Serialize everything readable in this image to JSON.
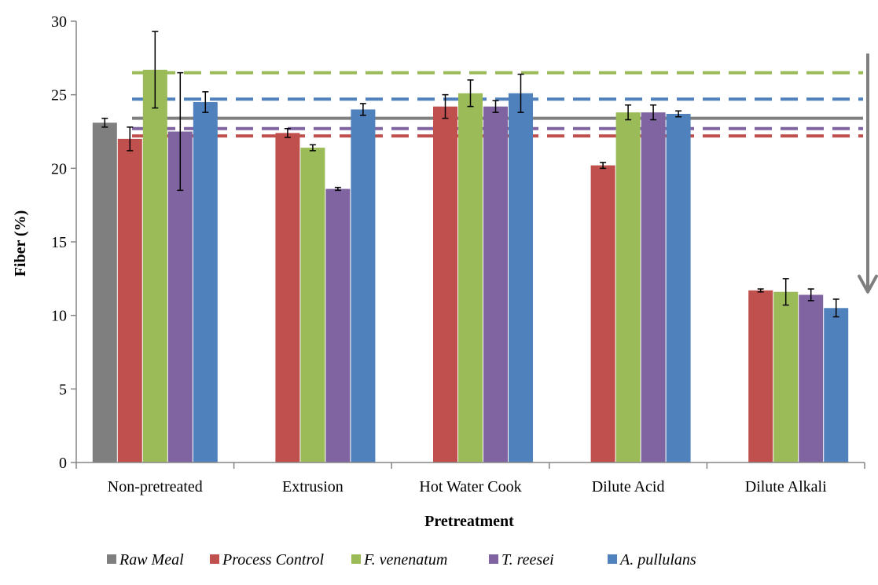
{
  "chart_data": {
    "type": "bar",
    "xlabel": "Pretreatment",
    "ylabel": "Fiber (%)",
    "ylim": [
      0,
      30
    ],
    "yticks": [
      0,
      5,
      10,
      15,
      20,
      25,
      30
    ],
    "grid": false,
    "legend_position": "bottom",
    "categories": [
      "Non-pretreated",
      "Extrusion",
      "Hot Water Cook",
      "Dilute Acid",
      "Dilute Alkali"
    ],
    "series": [
      {
        "name": "Raw Meal",
        "color": "#7f7f7f",
        "values": [
          23.1,
          null,
          null,
          null,
          null
        ],
        "errors": [
          0.3,
          null,
          null,
          null,
          null
        ]
      },
      {
        "name": "Process Control",
        "color": "#c0504d",
        "values": [
          22.0,
          22.4,
          24.2,
          20.2,
          11.7
        ],
        "errors": [
          0.8,
          0.3,
          0.8,
          0.2,
          0.1
        ]
      },
      {
        "name": "F. venenatum",
        "color": "#9bbb59",
        "values": [
          26.7,
          21.4,
          25.1,
          23.8,
          11.6
        ],
        "errors": [
          2.6,
          0.2,
          0.9,
          0.5,
          0.9
        ]
      },
      {
        "name": "T. reesei",
        "color": "#8064a2",
        "values": [
          22.5,
          18.6,
          24.2,
          23.8,
          11.4
        ],
        "errors": [
          4.0,
          0.1,
          0.4,
          0.5,
          0.4
        ]
      },
      {
        "name": "A. pullulans",
        "color": "#4f81bd",
        "values": [
          24.5,
          24.0,
          25.1,
          23.7,
          10.5
        ],
        "errors": [
          0.7,
          0.4,
          1.3,
          0.2,
          0.6
        ]
      }
    ],
    "reference_lines": [
      {
        "series": "F. venenatum",
        "value": 26.5,
        "style": "dashed",
        "color": "#9bbb59"
      },
      {
        "series": "A. pullulans",
        "value": 24.7,
        "style": "dashed",
        "color": "#4f81bd"
      },
      {
        "series": "Raw Meal",
        "value": 23.4,
        "style": "solid",
        "color": "#7f7f7f"
      },
      {
        "series": "T. reesei",
        "value": 22.7,
        "style": "dashed",
        "color": "#8064a2"
      },
      {
        "series": "Process Control",
        "value": 22.2,
        "style": "dashed",
        "color": "#c0504d"
      }
    ],
    "arrow": {
      "from": 27.8,
      "to": 11.6,
      "color": "#7f7f7f"
    }
  }
}
